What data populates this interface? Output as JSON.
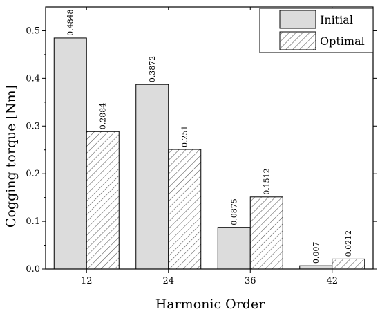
{
  "chart_data": {
    "type": "bar",
    "xlabel": "Harmonic Order",
    "ylabel": "Cogging torque [Nm]",
    "categories": [
      "12",
      "24",
      "36",
      "42"
    ],
    "series": [
      {
        "name": "Initial",
        "values": [
          0.4848,
          0.3872,
          0.0875,
          0.007
        ],
        "labels": [
          "0.4848",
          "0.3872",
          "0.0875",
          "0.007"
        ],
        "fill": "#dcdcdc",
        "pattern": "solid"
      },
      {
        "name": "Optimal",
        "values": [
          0.2884,
          0.251,
          0.1512,
          0.0212
        ],
        "labels": [
          "0.2884",
          "0.251",
          "0.1512",
          "0.0212"
        ],
        "fill": "#ffffff",
        "pattern": "diagonal-hatch"
      }
    ],
    "ylim": [
      0,
      0.55
    ],
    "yticks": [
      0.0,
      0.1,
      0.2,
      0.3,
      0.4,
      0.5
    ],
    "ytick_labels": [
      "0.0",
      "0.1",
      "0.2",
      "0.3",
      "0.4",
      "0.5"
    ],
    "grid": false,
    "legend_position": "top-right",
    "colors": {
      "initial": "#dcdcdc",
      "optimal_hatch": "#555555",
      "axis": "#000000"
    }
  }
}
